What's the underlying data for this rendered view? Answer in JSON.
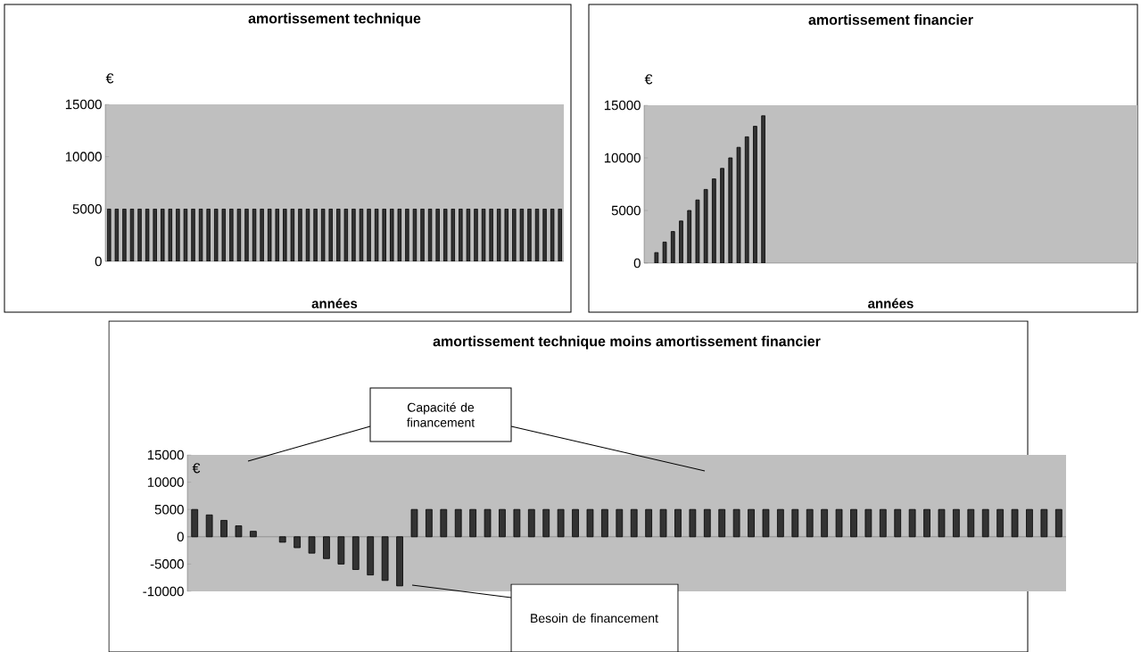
{
  "chart_data": [
    {
      "type": "bar",
      "title": "amortissement technique",
      "xlabel": "années",
      "ylabel": "€",
      "categories": [
        null,
        null,
        null,
        null,
        null,
        null,
        null,
        null,
        null,
        null,
        null,
        null,
        null,
        null,
        null,
        null,
        null,
        null,
        null,
        null,
        null,
        null,
        null,
        null,
        null,
        null,
        null,
        null,
        null,
        null,
        null,
        null,
        null,
        null,
        null,
        null,
        null,
        null,
        null,
        null,
        null,
        null,
        null,
        null,
        null,
        null,
        null,
        null,
        null,
        null,
        null,
        null,
        null,
        null,
        null,
        null,
        null,
        null,
        null,
        null
      ],
      "values": [
        5000,
        5000,
        5000,
        5000,
        5000,
        5000,
        5000,
        5000,
        5000,
        5000,
        5000,
        5000,
        5000,
        5000,
        5000,
        5000,
        5000,
        5000,
        5000,
        5000,
        5000,
        5000,
        5000,
        5000,
        5000,
        5000,
        5000,
        5000,
        5000,
        5000,
        5000,
        5000,
        5000,
        5000,
        5000,
        5000,
        5000,
        5000,
        5000,
        5000,
        5000,
        5000,
        5000,
        5000,
        5000,
        5000,
        5000,
        5000,
        5000,
        5000,
        5000,
        5000,
        5000,
        5000,
        5000,
        5000,
        5000,
        5000,
        5000,
        5000
      ],
      "color": "#333333",
      "ylim": [
        0,
        15000
      ],
      "yticks": [
        0,
        5000,
        10000,
        15000
      ]
    },
    {
      "type": "bar",
      "title": "amortissement financier",
      "xlabel": "années",
      "ylabel": "€",
      "categories": [
        null,
        null,
        null,
        null,
        null,
        null,
        null,
        null,
        null,
        null,
        null,
        null,
        null,
        null,
        null,
        null,
        null,
        null,
        null,
        null,
        null,
        null,
        null,
        null,
        null,
        null,
        null,
        null,
        null,
        null,
        null,
        null,
        null,
        null,
        null,
        null,
        null,
        null,
        null,
        null,
        null,
        null,
        null,
        null,
        null,
        null,
        null,
        null,
        null,
        null,
        null,
        null,
        null,
        null,
        null,
        null,
        null,
        null,
        null,
        null
      ],
      "values": [
        null,
        1000,
        2000,
        3000,
        4000,
        5000,
        6000,
        7000,
        8000,
        9000,
        10000,
        11000,
        12000,
        13000,
        14000,
        null,
        null,
        null,
        null,
        null,
        null,
        null,
        null,
        null,
        null,
        null,
        null,
        null,
        null,
        null,
        null,
        null,
        null,
        null,
        null,
        null,
        null,
        null,
        null,
        null,
        null,
        null,
        null,
        null,
        null,
        null,
        null,
        null,
        null,
        null,
        null,
        null,
        null,
        null,
        null,
        null,
        null,
        null,
        null,
        null
      ],
      "color": "#333333",
      "ylim": [
        0,
        15000
      ],
      "yticks": [
        0,
        5000,
        10000,
        15000
      ]
    },
    {
      "type": "bar",
      "title": "amortissement technique moins amortissement financier",
      "ylabel": "€",
      "categories": [
        null,
        null,
        null,
        null,
        null,
        null,
        null,
        null,
        null,
        null,
        null,
        null,
        null,
        null,
        null,
        null,
        null,
        null,
        null,
        null,
        null,
        null,
        null,
        null,
        null,
        null,
        null,
        null,
        null,
        null,
        null,
        null,
        null,
        null,
        null,
        null,
        null,
        null,
        null,
        null,
        null,
        null,
        null,
        null,
        null,
        null,
        null,
        null,
        null,
        null,
        null,
        null,
        null,
        null,
        null,
        null,
        null,
        null,
        null,
        null
      ],
      "values": [
        5000,
        4000,
        3000,
        2000,
        1000,
        null,
        -1000,
        -2000,
        -3000,
        -4000,
        -5000,
        -6000,
        -7000,
        -8000,
        -9000,
        5000,
        5000,
        5000,
        5000,
        5000,
        5000,
        5000,
        5000,
        5000,
        5000,
        5000,
        5000,
        5000,
        5000,
        5000,
        5000,
        5000,
        5000,
        5000,
        5000,
        5000,
        5000,
        5000,
        5000,
        5000,
        5000,
        5000,
        5000,
        5000,
        5000,
        5000,
        5000,
        5000,
        5000,
        5000,
        5000,
        5000,
        5000,
        5000,
        5000,
        5000,
        5000,
        5000,
        5000,
        5000
      ],
      "color": "#333333",
      "ylim": [
        -10000,
        15000
      ],
      "yticks": [
        -10000,
        -5000,
        0,
        5000,
        10000,
        15000
      ],
      "annotations": [
        "Capacité de financement",
        "Besoin de financement"
      ]
    }
  ]
}
